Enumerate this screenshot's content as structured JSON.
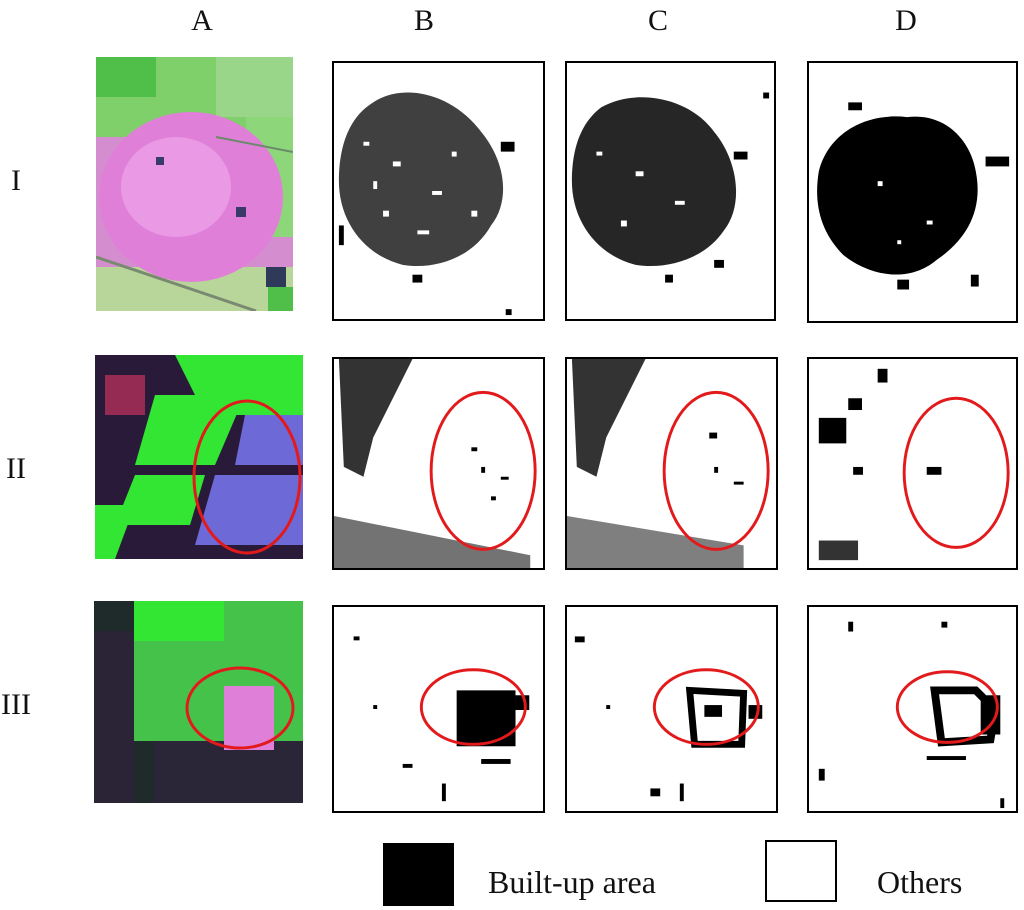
{
  "columns": [
    "A",
    "B",
    "C",
    "D"
  ],
  "rows": [
    "I",
    "II",
    "III"
  ],
  "legend": {
    "built_up": "Built-up area",
    "others": "Others"
  },
  "colors": {
    "built_up": "#000000",
    "others": "#ffffff",
    "highlight_ellipse": "#e31a1c",
    "urban_pink": "#e07fd8",
    "vegetation_green": "#33e633",
    "water_dark": "#2a1a3a"
  }
}
